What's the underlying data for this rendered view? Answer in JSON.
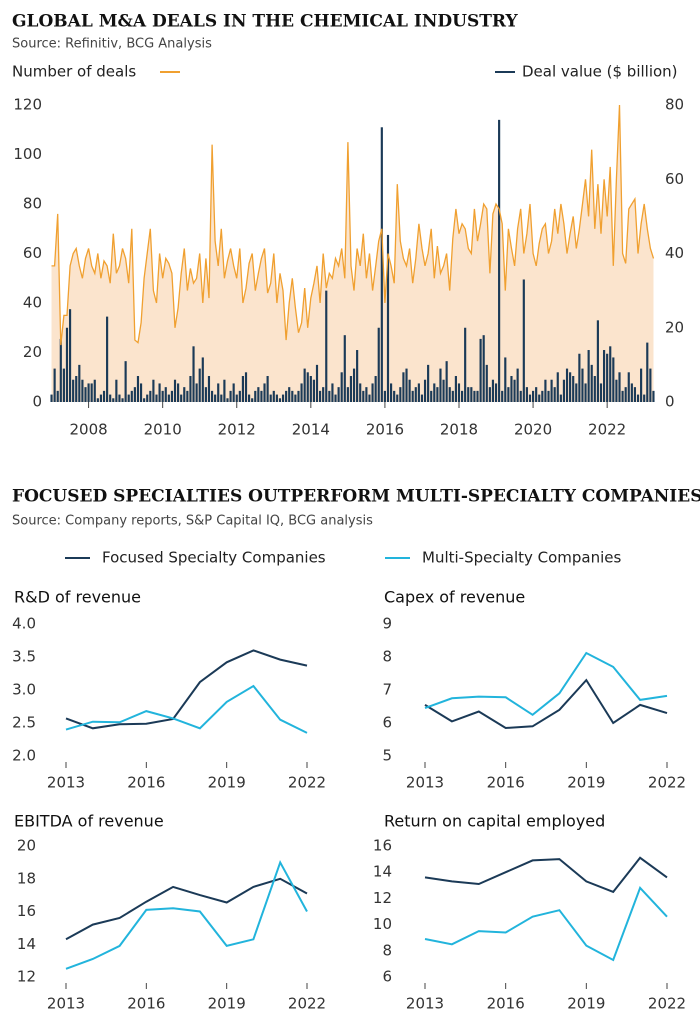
{
  "figure": {
    "title": "FOCUSED SPECIALTIES OUTPERFORM MULTI-SPECIALTY COMPANIES",
    "source": "Source: Company reports, S&P Capital IQ, BCG analysis"
  },
  "chart_data": [
    {
      "type": "bar-line",
      "title": "GLOBAL M&A DEALS IN THE CHEMICAL INDUSTRY",
      "source": "Source: Refinitiv, BCG Analysis",
      "categories": [
        null,
        null,
        null,
        null,
        null,
        null,
        null,
        null,
        null,
        null,
        null,
        null,
        "2008",
        null,
        null,
        null,
        null,
        null,
        null,
        null,
        null,
        null,
        null,
        null,
        null,
        null,
        null,
        null,
        null,
        null,
        null,
        null,
        null,
        null,
        null,
        null,
        "2010",
        null,
        null,
        null,
        null,
        null,
        null,
        null,
        null,
        null,
        null,
        null,
        null,
        null,
        null,
        null,
        null,
        null,
        null,
        null,
        null,
        null,
        null,
        null,
        "2012",
        null,
        null,
        null,
        null,
        null,
        null,
        null,
        null,
        null,
        null,
        null,
        null,
        null,
        null,
        null,
        null,
        null,
        null,
        null,
        null,
        null,
        null,
        null,
        "2014",
        null,
        null,
        null,
        null,
        null,
        null,
        null,
        null,
        null,
        null,
        null,
        null,
        null,
        null,
        null,
        null,
        null,
        null,
        null,
        null,
        null,
        null,
        null,
        "2016",
        null,
        null,
        null,
        null,
        null,
        null,
        null,
        null,
        null,
        null,
        null,
        null,
        null,
        null,
        null,
        null,
        null,
        null,
        null,
        null,
        null,
        null,
        null,
        "2018",
        null,
        null,
        null,
        null,
        null,
        null,
        null,
        null,
        null,
        null,
        null,
        null,
        null,
        null,
        null,
        null,
        null,
        null,
        null,
        null,
        null,
        null,
        null,
        "2020",
        null,
        null,
        null,
        null,
        null,
        null,
        null,
        null,
        null,
        null,
        null,
        null,
        null,
        null,
        null,
        null,
        null,
        null,
        null,
        null,
        null,
        null,
        null,
        "2022",
        null,
        null,
        null,
        null,
        null,
        null,
        null,
        null,
        null,
        null,
        null,
        null,
        null,
        null,
        null
      ],
      "series": [
        {
          "name": "Number of deals",
          "color": "#f0a030",
          "area_color": "#fbe4cd",
          "axis": "y",
          "values": [
            55,
            55,
            76,
            23,
            35,
            35,
            55,
            60,
            62,
            55,
            50,
            58,
            62,
            55,
            52,
            60,
            50,
            57,
            55,
            48,
            68,
            52,
            55,
            62,
            58,
            48,
            70,
            25,
            24,
            32,
            50,
            60,
            70,
            45,
            40,
            60,
            50,
            58,
            56,
            52,
            30,
            38,
            52,
            62,
            45,
            54,
            48,
            50,
            60,
            40,
            58,
            42,
            104,
            65,
            55,
            70,
            50,
            57,
            62,
            55,
            50,
            62,
            40,
            46,
            56,
            60,
            45,
            52,
            58,
            62,
            44,
            48,
            60,
            40,
            52,
            45,
            25,
            40,
            50,
            38,
            28,
            32,
            46,
            30,
            42,
            48,
            55,
            40,
            60,
            46,
            52,
            50,
            58,
            55,
            62,
            50,
            105,
            55,
            45,
            62,
            55,
            68,
            50,
            60,
            45,
            55,
            65,
            70,
            40,
            60,
            55,
            48,
            88,
            65,
            58,
            55,
            62,
            48,
            58,
            72,
            62,
            55,
            60,
            70,
            50,
            63,
            52,
            55,
            60,
            45,
            66,
            78,
            68,
            72,
            70,
            62,
            60,
            78,
            65,
            72,
            80,
            78,
            52,
            76,
            80,
            78,
            72,
            45,
            70,
            62,
            55,
            70,
            78,
            60,
            68,
            80,
            60,
            55,
            64,
            70,
            72,
            60,
            65,
            78,
            68,
            80,
            72,
            60,
            68,
            75,
            62,
            70,
            80,
            90,
            75,
            102,
            70,
            88,
            68,
            90,
            75,
            95,
            55,
            90,
            120,
            60,
            56,
            78,
            80,
            82,
            60,
            72,
            80,
            70,
            62,
            58
          ]
        },
        {
          "name": "Deal value ($ billion)",
          "color": "#1b3a57",
          "axis": "y2",
          "values": [
            2,
            9,
            3,
            17,
            9,
            20,
            25,
            6,
            7,
            10,
            6,
            4,
            5,
            5,
            6,
            1,
            2,
            3,
            23,
            2,
            1,
            6,
            2,
            1,
            11,
            2,
            3,
            4,
            7,
            5,
            1,
            2,
            3,
            6,
            2,
            5,
            3,
            4,
            2,
            3,
            6,
            5,
            2,
            4,
            3,
            7,
            15,
            5,
            9,
            12,
            4,
            7,
            3,
            2,
            5,
            2,
            6,
            1,
            3,
            5,
            2,
            3,
            7,
            8,
            2,
            1,
            3,
            4,
            3,
            5,
            7,
            2,
            3,
            2,
            1,
            2,
            3,
            4,
            3,
            2,
            3,
            5,
            9,
            8,
            7,
            6,
            10,
            3,
            4,
            30,
            3,
            5,
            2,
            4,
            8,
            18,
            4,
            7,
            9,
            14,
            5,
            3,
            4,
            2,
            5,
            7,
            20,
            74,
            3,
            45,
            5,
            3,
            2,
            4,
            8,
            9,
            6,
            3,
            4,
            5,
            2,
            6,
            10,
            3,
            5,
            4,
            9,
            6,
            11,
            4,
            3,
            7,
            5,
            3,
            20,
            4,
            4,
            3,
            3,
            17,
            18,
            10,
            4,
            6,
            5,
            76,
            3,
            12,
            4,
            7,
            6,
            9,
            3,
            33,
            4,
            2,
            3,
            4,
            2,
            3,
            6,
            3,
            6,
            4,
            8,
            2,
            6,
            9,
            8,
            7,
            5,
            13,
            9,
            5,
            14,
            10,
            7,
            22,
            5,
            14,
            13,
            15,
            12,
            6,
            8,
            3,
            4,
            8,
            5,
            4,
            2,
            9,
            2,
            16,
            9,
            3
          ]
        }
      ],
      "ylim": [
        0,
        120
      ],
      "yticks": [
        0,
        20,
        40,
        60,
        80,
        100,
        120
      ],
      "y2lim": [
        0,
        80
      ],
      "y2ticks": [
        0,
        20,
        40,
        60,
        80
      ]
    },
    {
      "type": "line",
      "title": "R&D of revenue",
      "x": [
        2013,
        2014,
        2015,
        2016,
        2017,
        2018,
        2019,
        2020,
        2021,
        2022
      ],
      "xlim": [
        2013,
        2022
      ],
      "xticks": [
        2013,
        2016,
        2019,
        2022
      ],
      "ylim": [
        2.0,
        4.0
      ],
      "yticks": [
        {
          "value": 2.0,
          "label": "2.0"
        },
        2.5,
        {
          "value": 3.0,
          "label": "3.0"
        },
        3.5,
        {
          "value": 4.0,
          "label": "4.0"
        }
      ],
      "series": [
        {
          "name": "Focused Specialty Companies",
          "color": "#1b3a57",
          "values": [
            2.57,
            2.42,
            2.48,
            2.49,
            2.56,
            3.12,
            3.42,
            3.6,
            3.46,
            3.37
          ]
        },
        {
          "name": "Multi-Specialty Companies",
          "color": "#22b4dc",
          "values": [
            2.4,
            2.52,
            2.51,
            2.68,
            2.57,
            2.42,
            2.82,
            3.06,
            2.55,
            2.35
          ]
        }
      ]
    },
    {
      "type": "line",
      "title": "Capex of revenue",
      "x": [
        2013,
        2014,
        2015,
        2016,
        2017,
        2018,
        2019,
        2020,
        2021,
        2022
      ],
      "xlim": [
        2013,
        2022
      ],
      "xticks": [
        2013,
        2016,
        2019,
        2022
      ],
      "ylim": [
        5,
        9
      ],
      "yticks": [
        5,
        6,
        7,
        8,
        9
      ],
      "series": [
        {
          "name": "Focused Specialty Companies",
          "color": "#1b3a57",
          "values": [
            6.55,
            6.05,
            6.35,
            5.85,
            5.9,
            6.4,
            7.3,
            6.0,
            6.55,
            6.3
          ]
        },
        {
          "name": "Multi-Specialty Companies",
          "color": "#22b4dc",
          "values": [
            6.45,
            6.75,
            6.8,
            6.78,
            6.25,
            6.9,
            8.12,
            7.7,
            6.7,
            6.82
          ]
        }
      ]
    },
    {
      "type": "line",
      "title": "EBITDA of revenue",
      "x": [
        2013,
        2014,
        2015,
        2016,
        2017,
        2018,
        2019,
        2020,
        2021,
        2022
      ],
      "xlim": [
        2013,
        2022
      ],
      "xticks": [
        2013,
        2016,
        2019,
        2022
      ],
      "ylim": [
        12,
        20
      ],
      "yticks": [
        12,
        14,
        16,
        18,
        20
      ],
      "series": [
        {
          "name": "Focused Specialty Companies",
          "color": "#1b3a57",
          "values": [
            14.3,
            15.2,
            15.6,
            16.6,
            17.5,
            17.0,
            16.55,
            17.5,
            18.0,
            17.1
          ]
        },
        {
          "name": "Multi-Specialty Companies",
          "color": "#22b4dc",
          "values": [
            12.5,
            13.1,
            13.9,
            16.1,
            16.2,
            16.0,
            13.9,
            14.3,
            19.0,
            16.0
          ]
        }
      ]
    },
    {
      "type": "line",
      "title": "Return on capital employed",
      "x": [
        2013,
        2014,
        2015,
        2016,
        2017,
        2018,
        2019,
        2020,
        2021,
        2022
      ],
      "xlim": [
        2013,
        2022
      ],
      "xticks": [
        2013,
        2016,
        2019,
        2022
      ],
      "ylim": [
        6,
        16
      ],
      "yticks": [
        6,
        8,
        10,
        12,
        14,
        16
      ],
      "series": [
        {
          "name": "Focused Specialty Companies",
          "color": "#1b3a57",
          "values": [
            13.6,
            13.3,
            13.1,
            14.0,
            14.9,
            15.0,
            13.3,
            12.5,
            15.1,
            13.6
          ]
        },
        {
          "name": "Multi-Specialty Companies",
          "color": "#22b4dc",
          "values": [
            8.9,
            8.5,
            9.5,
            9.4,
            10.6,
            11.1,
            8.4,
            7.3,
            12.8,
            10.6
          ]
        }
      ]
    }
  ]
}
